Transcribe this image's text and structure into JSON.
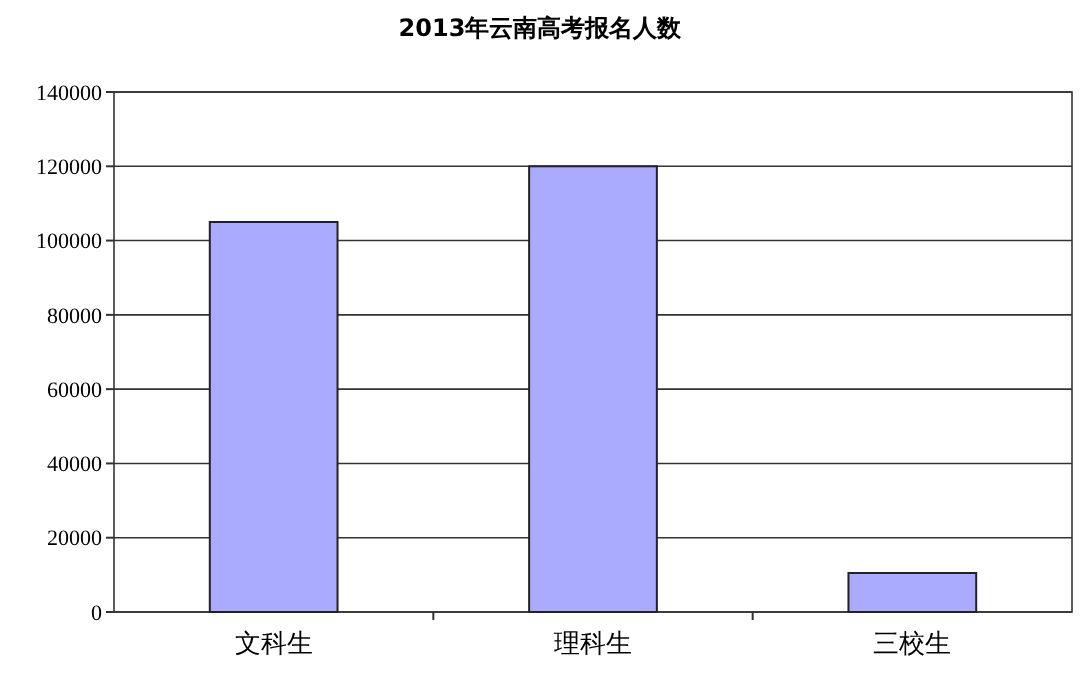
{
  "chart_data": {
    "type": "bar",
    "title": "2013年云南高考报名人数",
    "categories": [
      "文科生",
      "理科生",
      "三校生"
    ],
    "values": [
      105000,
      120000,
      10500
    ],
    "color": "#aaaaff",
    "ylim": [
      0,
      140000
    ],
    "yticks": [
      0,
      20000,
      40000,
      60000,
      80000,
      100000,
      120000,
      140000
    ],
    "grid": "y"
  }
}
